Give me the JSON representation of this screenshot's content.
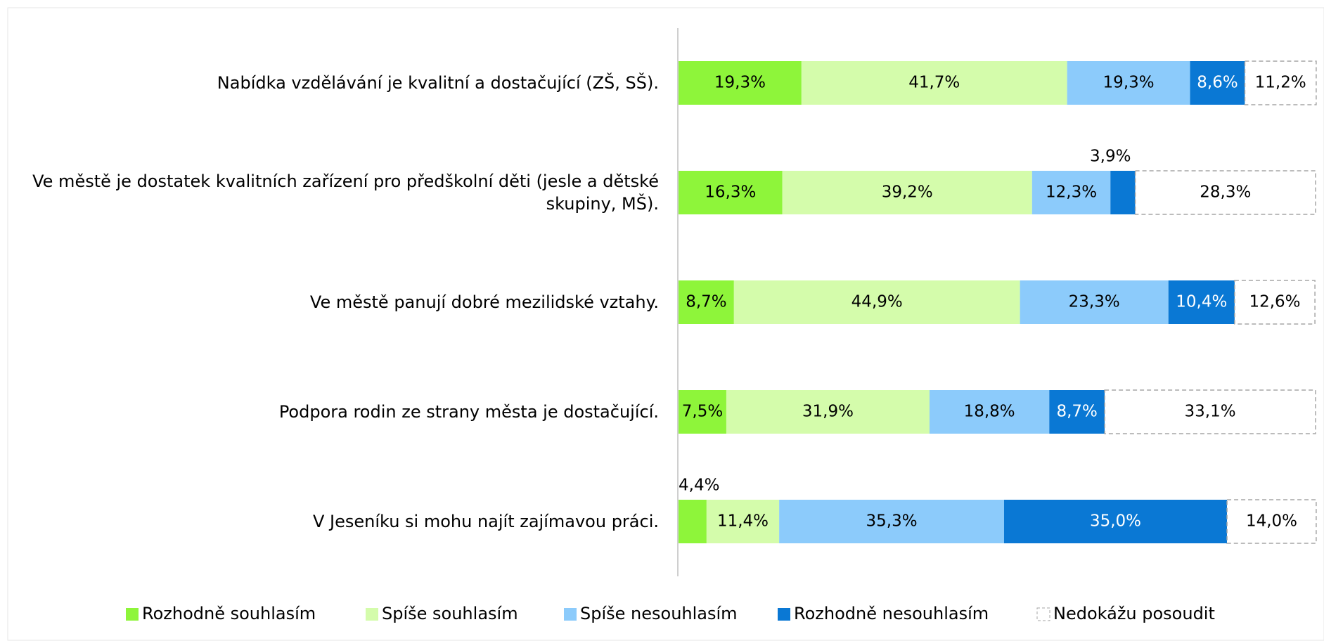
{
  "chart_data": {
    "type": "stacked_barh",
    "categories": [
      "Nabídka vzdělávání je kvalitní a dostačující (ZŠ, SŠ).",
      "Ve městě je dostatek kvalitních zařízení pro předškolní děti (jesle a dětské skupiny, MŠ).",
      "Ve městě panují dobré mezilidské vztahy.",
      "Podpora rodin ze strany města je dostačující.",
      "V Jeseníku si mohu najít zajímavou práci."
    ],
    "series": [
      {
        "name": "Rozhodně souhlasím",
        "color": "#8ef53a",
        "values": [
          19.3,
          16.3,
          8.7,
          7.5,
          4.4
        ],
        "value_labels": [
          "19,3%",
          "16,3%",
          "8,7%",
          "7,5%",
          "4,4%"
        ]
      },
      {
        "name": "Spíše souhlasím",
        "color": "#d4fcab",
        "values": [
          41.7,
          39.2,
          44.9,
          31.9,
          11.4
        ],
        "value_labels": [
          "41,7%",
          "39,2%",
          "44,9%",
          "31,9%",
          "11,4%"
        ]
      },
      {
        "name": "Spíše nesouhlasím",
        "color": "#8ccbfb",
        "values": [
          19.3,
          12.3,
          23.3,
          18.8,
          35.3
        ],
        "value_labels": [
          "19,3%",
          "12,3%",
          "23,3%",
          "18,8%",
          "35,3%"
        ]
      },
      {
        "name": "Rozhodně nesouhlasím",
        "color": "#0a78d4",
        "values": [
          8.6,
          3.9,
          10.4,
          8.7,
          35.0
        ],
        "value_labels": [
          "8,6%",
          "3,9%",
          "10,4%",
          "8,7%",
          "35,0%"
        ]
      },
      {
        "name": "Nedokážu posoudit",
        "color": "#ffffff",
        "values": [
          11.2,
          28.3,
          12.6,
          33.1,
          14.0
        ],
        "value_labels": [
          "11,2%",
          "28,3%",
          "12,6%",
          "33,1%",
          "14,0%"
        ]
      }
    ],
    "xlim": [
      0,
      100
    ],
    "legend": "bottom"
  }
}
